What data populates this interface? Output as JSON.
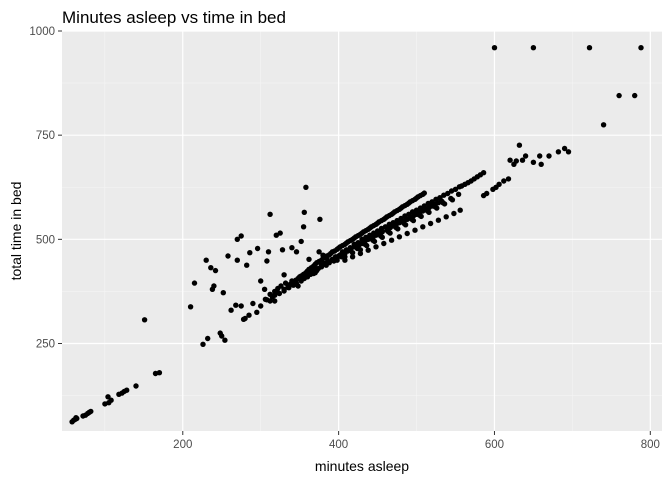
{
  "chart_data": {
    "type": "scatter",
    "title": "Minutes asleep vs time in bed",
    "xlabel": "minutes asleep",
    "ylabel": "total time in bed",
    "xlim": [
      45,
      815
    ],
    "ylim": [
      40,
      1000
    ],
    "xticks": [
      200,
      400,
      600,
      800
    ],
    "yticks": [
      250,
      500,
      750,
      1000
    ],
    "grid": true,
    "colors": {
      "panel": "#ebebeb",
      "grid_major": "#ffffff",
      "grid_minor": "#f5f5f5",
      "point": "#000000"
    },
    "points": [
      [
        58,
        62
      ],
      [
        60,
        66
      ],
      [
        62,
        68
      ],
      [
        64,
        70
      ],
      [
        63,
        72
      ],
      [
        72,
        76
      ],
      [
        75,
        78
      ],
      [
        78,
        82
      ],
      [
        80,
        85
      ],
      [
        82,
        87
      ],
      [
        100,
        105
      ],
      [
        105,
        108
      ],
      [
        108,
        114
      ],
      [
        104,
        122
      ],
      [
        118,
        128
      ],
      [
        122,
        131
      ],
      [
        125,
        135
      ],
      [
        128,
        138
      ],
      [
        140,
        148
      ],
      [
        165,
        178
      ],
      [
        170,
        180
      ],
      [
        151,
        307
      ],
      [
        210,
        338
      ],
      [
        215,
        395
      ],
      [
        226,
        248
      ],
      [
        232,
        262
      ],
      [
        238,
        380
      ],
      [
        240,
        388
      ],
      [
        248,
        275
      ],
      [
        250,
        268
      ],
      [
        252,
        372
      ],
      [
        254,
        258
      ],
      [
        258,
        460
      ],
      [
        270,
        500
      ],
      [
        275,
        508
      ],
      [
        278,
        308
      ],
      [
        280,
        310
      ],
      [
        285,
        318
      ],
      [
        295,
        325
      ],
      [
        300,
        400
      ],
      [
        305,
        380
      ],
      [
        308,
        448
      ],
      [
        310,
        470
      ],
      [
        312,
        560
      ],
      [
        320,
        510
      ],
      [
        325,
        515
      ],
      [
        328,
        475
      ],
      [
        330,
        415
      ],
      [
        332,
        395
      ],
      [
        335,
        390
      ],
      [
        340,
        400
      ],
      [
        348,
        388
      ],
      [
        355,
        530
      ],
      [
        356,
        565
      ],
      [
        358,
        625
      ],
      [
        362,
        452
      ],
      [
        376,
        548
      ],
      [
        368,
        418
      ],
      [
        372,
        425
      ],
      [
        380,
        462
      ],
      [
        270,
        450
      ],
      [
        282,
        438
      ],
      [
        286,
        468
      ],
      [
        296,
        478
      ],
      [
        230,
        450
      ],
      [
        236,
        432
      ],
      [
        242,
        425
      ],
      [
        268,
        342
      ],
      [
        275,
        340
      ],
      [
        262,
        330
      ],
      [
        290,
        346
      ],
      [
        308,
        355
      ],
      [
        312,
        368
      ],
      [
        318,
        375
      ],
      [
        322,
        382
      ],
      [
        326,
        388
      ],
      [
        318,
        352
      ],
      [
        315,
        362
      ],
      [
        322,
        372
      ],
      [
        330,
        380
      ],
      [
        335,
        385
      ],
      [
        338,
        392
      ],
      [
        342,
        398
      ],
      [
        345,
        402
      ],
      [
        348,
        406
      ],
      [
        350,
        410
      ],
      [
        352,
        412
      ],
      [
        355,
        416
      ],
      [
        358,
        420
      ],
      [
        360,
        424
      ],
      [
        362,
        428
      ],
      [
        365,
        432
      ],
      [
        368,
        436
      ],
      [
        370,
        440
      ],
      [
        372,
        444
      ],
      [
        375,
        447
      ],
      [
        378,
        450
      ],
      [
        380,
        454
      ],
      [
        382,
        457
      ],
      [
        385,
        460
      ],
      [
        388,
        463
      ],
      [
        390,
        466
      ],
      [
        392,
        470
      ],
      [
        395,
        472
      ],
      [
        398,
        476
      ],
      [
        400,
        479
      ],
      [
        402,
        482
      ],
      [
        405,
        485
      ],
      [
        408,
        488
      ],
      [
        410,
        491
      ],
      [
        412,
        494
      ],
      [
        415,
        497
      ],
      [
        418,
        500
      ],
      [
        420,
        503
      ],
      [
        422,
        506
      ],
      [
        425,
        509
      ],
      [
        428,
        512
      ],
      [
        430,
        515
      ],
      [
        432,
        518
      ],
      [
        435,
        521
      ],
      [
        438,
        524
      ],
      [
        440,
        527
      ],
      [
        442,
        530
      ],
      [
        445,
        533
      ],
      [
        448,
        536
      ],
      [
        450,
        539
      ],
      [
        452,
        542
      ],
      [
        455,
        545
      ],
      [
        458,
        548
      ],
      [
        460,
        551
      ],
      [
        462,
        554
      ],
      [
        465,
        557
      ],
      [
        468,
        560
      ],
      [
        470,
        563
      ],
      [
        472,
        566
      ],
      [
        475,
        569
      ],
      [
        478,
        572
      ],
      [
        480,
        575
      ],
      [
        482,
        578
      ],
      [
        485,
        581
      ],
      [
        488,
        584
      ],
      [
        490,
        587
      ],
      [
        492,
        590
      ],
      [
        495,
        593
      ],
      [
        498,
        596
      ],
      [
        500,
        599
      ],
      [
        502,
        602
      ],
      [
        505,
        605
      ],
      [
        508,
        608
      ],
      [
        510,
        611
      ],
      [
        360,
        410
      ],
      [
        365,
        418
      ],
      [
        368,
        424
      ],
      [
        372,
        428
      ],
      [
        378,
        438
      ],
      [
        382,
        442
      ],
      [
        386,
        448
      ],
      [
        392,
        452
      ],
      [
        396,
        458
      ],
      [
        402,
        463
      ],
      [
        406,
        468
      ],
      [
        412,
        472
      ],
      [
        416,
        478
      ],
      [
        420,
        482
      ],
      [
        426,
        486
      ],
      [
        430,
        490
      ],
      [
        434,
        496
      ],
      [
        438,
        500
      ],
      [
        444,
        504
      ],
      [
        448,
        510
      ],
      [
        452,
        514
      ],
      [
        456,
        518
      ],
      [
        462,
        522
      ],
      [
        466,
        528
      ],
      [
        470,
        532
      ],
      [
        474,
        536
      ],
      [
        478,
        540
      ],
      [
        484,
        544
      ],
      [
        488,
        548
      ],
      [
        492,
        552
      ],
      [
        496,
        556
      ],
      [
        500,
        560
      ],
      [
        504,
        564
      ],
      [
        508,
        568
      ],
      [
        512,
        572
      ],
      [
        516,
        576
      ],
      [
        520,
        580
      ],
      [
        524,
        584
      ],
      [
        528,
        588
      ],
      [
        532,
        592
      ],
      [
        400,
        460
      ],
      [
        405,
        470
      ],
      [
        410,
        475
      ],
      [
        415,
        480
      ],
      [
        420,
        488
      ],
      [
        425,
        492
      ],
      [
        430,
        500
      ],
      [
        435,
        505
      ],
      [
        440,
        510
      ],
      [
        445,
        515
      ],
      [
        450,
        520
      ],
      [
        455,
        526
      ],
      [
        460,
        530
      ],
      [
        465,
        536
      ],
      [
        470,
        540
      ],
      [
        475,
        545
      ],
      [
        480,
        550
      ],
      [
        485,
        556
      ],
      [
        490,
        560
      ],
      [
        495,
        566
      ],
      [
        500,
        570
      ],
      [
        505,
        575
      ],
      [
        510,
        580
      ],
      [
        515,
        586
      ],
      [
        520,
        590
      ],
      [
        525,
        596
      ],
      [
        530,
        600
      ],
      [
        535,
        606
      ],
      [
        540,
        610
      ],
      [
        545,
        616
      ],
      [
        550,
        620
      ],
      [
        555,
        626
      ],
      [
        558,
        628
      ],
      [
        562,
        632
      ],
      [
        566,
        636
      ],
      [
        570,
        640
      ],
      [
        574,
        645
      ],
      [
        578,
        650
      ],
      [
        582,
        655
      ],
      [
        586,
        660
      ],
      [
        586,
        605
      ],
      [
        590,
        610
      ],
      [
        598,
        620
      ],
      [
        602,
        625
      ],
      [
        606,
        632
      ],
      [
        612,
        640
      ],
      [
        618,
        645
      ],
      [
        620,
        690
      ],
      [
        625,
        680
      ],
      [
        628,
        688
      ],
      [
        632,
        726
      ],
      [
        636,
        690
      ],
      [
        640,
        700
      ],
      [
        650,
        685
      ],
      [
        658,
        700
      ],
      [
        660,
        680
      ],
      [
        670,
        700
      ],
      [
        682,
        710
      ],
      [
        690,
        718
      ],
      [
        695,
        710
      ],
      [
        740,
        775
      ],
      [
        760,
        845
      ],
      [
        780,
        845
      ],
      [
        600,
        960
      ],
      [
        650,
        960
      ],
      [
        722,
        960
      ],
      [
        788,
        960
      ],
      [
        340,
        480
      ],
      [
        352,
        495
      ],
      [
        346,
        470
      ],
      [
        375,
        470
      ],
      [
        385,
        455
      ],
      [
        398,
        450
      ],
      [
        408,
        458
      ],
      [
        418,
        468
      ],
      [
        428,
        475
      ],
      [
        436,
        485
      ],
      [
        446,
        495
      ],
      [
        456,
        505
      ],
      [
        466,
        515
      ],
      [
        476,
        525
      ],
      [
        486,
        535
      ],
      [
        496,
        545
      ],
      [
        506,
        555
      ],
      [
        516,
        565
      ],
      [
        526,
        575
      ],
      [
        536,
        585
      ],
      [
        546,
        595
      ],
      [
        300,
        340
      ],
      [
        306,
        356
      ],
      [
        312,
        352
      ],
      [
        318,
        366
      ],
      [
        324,
        370
      ],
      [
        330,
        376
      ],
      [
        336,
        384
      ],
      [
        342,
        390
      ],
      [
        346,
        394
      ],
      [
        352,
        400
      ],
      [
        356,
        406
      ],
      [
        360,
        412
      ],
      [
        364,
        416
      ],
      [
        370,
        420
      ],
      [
        374,
        430
      ],
      [
        378,
        434
      ],
      [
        384,
        438
      ],
      [
        388,
        444
      ],
      [
        394,
        448
      ],
      [
        398,
        454
      ],
      [
        404,
        458
      ],
      [
        408,
        466
      ],
      [
        424,
        478
      ],
      [
        434,
        488
      ],
      [
        444,
        498
      ],
      [
        454,
        508
      ],
      [
        464,
        518
      ],
      [
        474,
        528
      ],
      [
        484,
        538
      ],
      [
        494,
        548
      ],
      [
        504,
        558
      ],
      [
        514,
        568
      ],
      [
        524,
        578
      ],
      [
        534,
        588
      ],
      [
        544,
        598
      ],
      [
        554,
        608
      ],
      [
        408,
        450
      ],
      [
        418,
        458
      ],
      [
        428,
        466
      ],
      [
        438,
        474
      ],
      [
        448,
        482
      ],
      [
        458,
        490
      ],
      [
        468,
        498
      ],
      [
        478,
        506
      ],
      [
        488,
        514
      ],
      [
        498,
        522
      ],
      [
        508,
        530
      ],
      [
        518,
        538
      ],
      [
        528,
        546
      ],
      [
        538,
        554
      ],
      [
        548,
        562
      ],
      [
        556,
        570
      ]
    ]
  }
}
